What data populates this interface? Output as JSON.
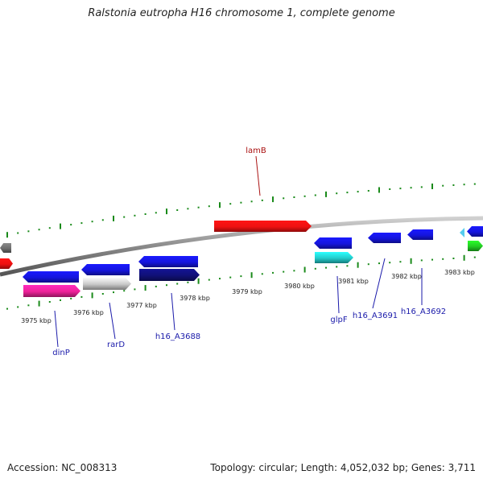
{
  "title": "Ralstonia eutropha H16 chromosome 1, complete genome",
  "footer": {
    "accession": "Accession: NC_008313",
    "topology": "Topology: circular; Length: 4,052,032 bp; Genes: 3,711"
  },
  "colors": {
    "backbone": "#8a8a8a",
    "tick": "#1a8a1a",
    "label_blue": "#1a1aaa",
    "label_red": "#aa1111"
  },
  "ticks": [
    {
      "label": "3975 kbp"
    },
    {
      "label": "3976 kbp"
    },
    {
      "label": "3977 kbp"
    },
    {
      "label": "3978 kbp"
    },
    {
      "label": "3979 kbp"
    },
    {
      "label": "3980 kbp"
    },
    {
      "label": "3981 kbp"
    },
    {
      "label": "3982 kbp"
    },
    {
      "label": "3983 kbp"
    }
  ],
  "gene_labels": {
    "lamB": "lamB",
    "dinP": "dinP",
    "rarD": "rarD",
    "h16_A3688": "h16_A3688",
    "glpF": "glpF",
    "h16_A3691": "h16_A3691",
    "h16_A3692": "h16_A3692"
  }
}
